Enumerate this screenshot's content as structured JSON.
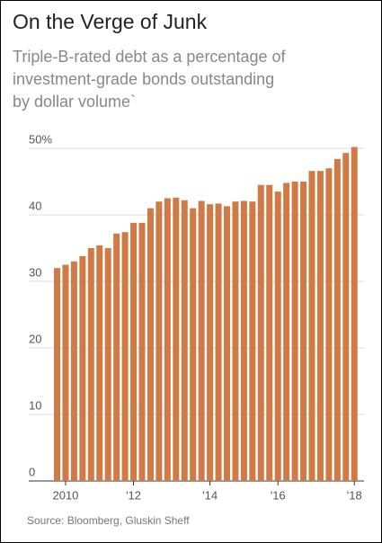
{
  "chart_data": {
    "type": "bar",
    "title": "On the Verge of Junk",
    "subtitle": [
      "Triple-B-rated debt as a percentage of",
      "investment-grade bonds outstanding",
      "by dollar volume`"
    ],
    "source": "Source: Bloomberg, Gluskin Sheff",
    "categories": [
      null,
      "2010",
      null,
      null,
      null,
      null,
      null,
      null,
      null,
      "'12",
      null,
      null,
      null,
      null,
      null,
      null,
      null,
      null,
      "'14",
      null,
      null,
      null,
      null,
      null,
      null,
      null,
      "'16",
      null,
      null,
      null,
      null,
      null,
      null,
      null,
      null,
      "'18"
    ],
    "values": [
      32.0,
      32.5,
      33.0,
      33.8,
      35.0,
      35.4,
      35.0,
      37.2,
      37.4,
      38.8,
      38.8,
      41.0,
      42.0,
      42.5,
      42.6,
      42.2,
      41.0,
      42.1,
      41.6,
      41.7,
      41.3,
      42.0,
      42.1,
      42.0,
      44.5,
      44.5,
      43.5,
      44.8,
      45.0,
      45.0,
      46.6,
      46.6,
      47.0,
      48.4,
      49.3,
      50.2
    ],
    "color": "#d07a45",
    "ylim": [
      0,
      50
    ],
    "yticks": [
      0,
      10,
      20,
      30,
      40,
      {
        "value": 50,
        "label": "50%"
      }
    ],
    "grid": true
  }
}
